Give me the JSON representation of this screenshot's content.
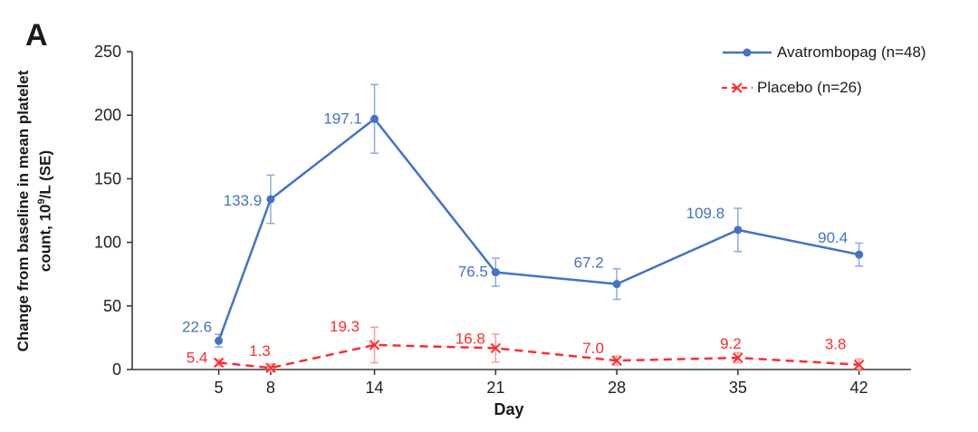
{
  "panel_label": "A",
  "colors": {
    "avatrombopag": "#4472c4",
    "avatrombopag_error": "#8faadc",
    "placebo": "#ff2b2b",
    "placebo_error": "#ff9a9a",
    "axis": "#3b3b3b",
    "tick_text": "#1f1f1f"
  },
  "legend": [
    {
      "label": "Avatrombopag (n=48)"
    },
    {
      "label": "Placebo (n=26)"
    }
  ],
  "x_axis": {
    "title": "Day"
  },
  "y_axis": {
    "title_line1": "Change from baseline in mean platelet",
    "title_line2_pre": "count, 10",
    "title_line2_sup": "9",
    "title_line2_post": "/L (SE)"
  },
  "chart_data": {
    "type": "line",
    "title": "",
    "xlabel": "Day",
    "ylabel": "Change from baseline in mean platelet count, 10⁹/L (SE)",
    "x": [
      5,
      8,
      14,
      21,
      28,
      35,
      42
    ],
    "xlim": [
      0,
      45
    ],
    "ylim": [
      0,
      250
    ],
    "y_ticks": [
      0,
      50,
      100,
      150,
      200,
      250
    ],
    "grid": false,
    "legend_position": "top-right",
    "series": [
      {
        "name": "Avatrombopag (n=48)",
        "color": "#4472c4",
        "error_color": "#8faadc",
        "line": "solid",
        "marker": "circle",
        "values": [
          22.6,
          133.9,
          197.1,
          76.5,
          67.2,
          109.8,
          90.4
        ],
        "se": [
          5,
          19,
          27,
          11,
          12,
          17,
          9
        ],
        "label_offsets": [
          [
            -24,
            -16
          ],
          [
            -31,
            1
          ],
          [
            -35,
            -1
          ],
          [
            -25,
            -1
          ],
          [
            -31,
            -24
          ],
          [
            -36,
            -19
          ],
          [
            -29,
            -19
          ]
        ]
      },
      {
        "name": "Placebo (n=26)",
        "color": "#ff2b2b",
        "error_color": "#ff9a9a",
        "line": "dashed",
        "marker": "x",
        "values": [
          5.4,
          1.3,
          19.3,
          16.8,
          7.0,
          9.2,
          3.8
        ],
        "se": [
          2.5,
          3,
          14,
          11,
          3.5,
          4,
          4.5
        ],
        "label_offsets": [
          [
            -24,
            -6
          ],
          [
            -12,
            -19
          ],
          [
            -33,
            -21
          ],
          [
            -28,
            -11
          ],
          [
            -26,
            -14
          ],
          [
            -8,
            -16
          ],
          [
            -26,
            -23
          ]
        ]
      }
    ]
  }
}
